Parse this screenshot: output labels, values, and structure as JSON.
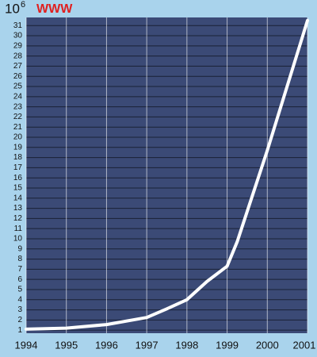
{
  "chart_data": {
    "type": "line",
    "title": "WWW",
    "y_unit": {
      "base": "10",
      "exponent": "6"
    },
    "x": [
      1994,
      1995,
      1996,
      1997,
      1997.5,
      1998,
      1998.5,
      1999,
      1999.25,
      2000,
      2001
    ],
    "series": [
      {
        "name": "WWW",
        "color": "#ffffff",
        "values": [
          1.1,
          1.2,
          1.55,
          2.25,
          3.1,
          4.0,
          5.8,
          7.3,
          9.7,
          18.7,
          31.5
        ]
      }
    ],
    "xlim": [
      1994,
      2001
    ],
    "xticks": [
      1994,
      1995,
      1996,
      1997,
      1998,
      1999,
      2000,
      2001
    ],
    "ylim": [
      0.7,
      31.8
    ],
    "yticks": [
      1,
      2,
      3,
      4,
      5,
      6,
      7,
      8,
      9,
      10,
      11,
      12,
      13,
      14,
      15,
      16,
      17,
      18,
      19,
      20,
      21,
      22,
      23,
      24,
      25,
      26,
      27,
      28,
      29,
      30,
      31
    ],
    "grid": true,
    "background": "#a9d3ec",
    "plot_background": "#3b4a76",
    "title_color": "#e02020"
  }
}
